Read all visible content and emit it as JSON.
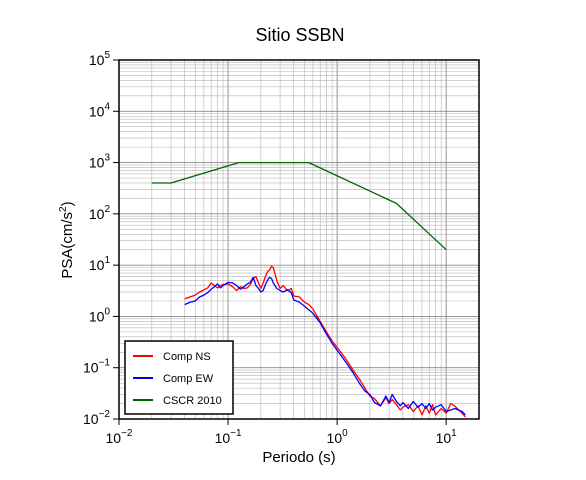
{
  "chart_data": {
    "type": "line",
    "title": "Sitio SSBN",
    "xlabel": "Periodo (s)",
    "ylabel": "PSA(cm/s²)",
    "ylabel_base": "PSA(cm/s",
    "ylabel_sup": "2",
    "ylabel_close": ")",
    "xscale": "log",
    "yscale": "log",
    "xlim": [
      0.01,
      20
    ],
    "ylim": [
      0.01,
      100000
    ],
    "grid": true,
    "legend_position": "bottom-left",
    "x_ticks": [
      {
        "base": "10",
        "exp": "−2",
        "value": 0.01
      },
      {
        "base": "10",
        "exp": "−1",
        "value": 0.1
      },
      {
        "base": "10",
        "exp": "0",
        "value": 1
      },
      {
        "base": "10",
        "exp": "1",
        "value": 10
      }
    ],
    "y_ticks": [
      {
        "base": "10",
        "exp": "−2",
        "value": 0.01
      },
      {
        "base": "10",
        "exp": "−1",
        "value": 0.1
      },
      {
        "base": "10",
        "exp": "0",
        "value": 1
      },
      {
        "base": "10",
        "exp": "1",
        "value": 10
      },
      {
        "base": "10",
        "exp": "2",
        "value": 100
      },
      {
        "base": "10",
        "exp": "3",
        "value": 1000
      },
      {
        "base": "10",
        "exp": "4",
        "value": 10000
      },
      {
        "base": "10",
        "exp": "5",
        "value": 100000
      }
    ],
    "series": [
      {
        "name": "Comp NS",
        "color": "#ff0000",
        "x": [
          0.04,
          0.045,
          0.05,
          0.055,
          0.06,
          0.065,
          0.07,
          0.075,
          0.08,
          0.085,
          0.09,
          0.1,
          0.11,
          0.12,
          0.13,
          0.14,
          0.15,
          0.16,
          0.17,
          0.18,
          0.19,
          0.2,
          0.21,
          0.22,
          0.23,
          0.24,
          0.25,
          0.26,
          0.28,
          0.3,
          0.32,
          0.35,
          0.38,
          0.4,
          0.45,
          0.5,
          0.55,
          0.6,
          0.7,
          0.8,
          0.9,
          1.0,
          1.2,
          1.4,
          1.6,
          1.8,
          2.0,
          2.2,
          2.5,
          2.8,
          3.0,
          3.2,
          3.5,
          3.8,
          4.0,
          4.5,
          5.0,
          5.5,
          6.0,
          6.5,
          7.0,
          7.5,
          8.0,
          9.0,
          10.0,
          11.0,
          12.0,
          13.0,
          14.0,
          15.0
        ],
        "y": [
          2.2,
          2.4,
          2.6,
          3.0,
          3.3,
          3.6,
          4.5,
          4.0,
          3.6,
          4.0,
          4.2,
          4.3,
          3.8,
          3.2,
          3.8,
          3.5,
          3.6,
          4.2,
          5.5,
          6.0,
          4.5,
          3.5,
          4.5,
          6.0,
          7.5,
          8.0,
          9.5,
          9.0,
          5.0,
          3.5,
          4.0,
          3.2,
          3.5,
          2.5,
          2.4,
          1.9,
          1.7,
          1.4,
          0.8,
          0.5,
          0.33,
          0.25,
          0.15,
          0.09,
          0.06,
          0.04,
          0.028,
          0.025,
          0.018,
          0.026,
          0.02,
          0.024,
          0.019,
          0.015,
          0.017,
          0.019,
          0.014,
          0.018,
          0.012,
          0.018,
          0.013,
          0.019,
          0.012,
          0.016,
          0.013,
          0.02,
          0.018,
          0.015,
          0.013,
          0.011
        ]
      },
      {
        "name": "Comp EW",
        "color": "#0000ff",
        "x": [
          0.04,
          0.045,
          0.05,
          0.055,
          0.06,
          0.065,
          0.07,
          0.075,
          0.08,
          0.085,
          0.09,
          0.1,
          0.11,
          0.12,
          0.13,
          0.14,
          0.15,
          0.16,
          0.17,
          0.18,
          0.19,
          0.2,
          0.21,
          0.22,
          0.23,
          0.24,
          0.25,
          0.26,
          0.28,
          0.3,
          0.32,
          0.35,
          0.38,
          0.4,
          0.45,
          0.5,
          0.55,
          0.6,
          0.7,
          0.8,
          0.9,
          1.0,
          1.2,
          1.4,
          1.6,
          1.8,
          2.0,
          2.2,
          2.5,
          2.8,
          3.0,
          3.2,
          3.5,
          3.8,
          4.0,
          4.5,
          5.0,
          5.5,
          6.0,
          6.5,
          7.0,
          7.5,
          8.0,
          9.0,
          10.0,
          11.0,
          12.0,
          13.0,
          14.0,
          15.0
        ],
        "y": [
          1.7,
          1.9,
          2.0,
          2.4,
          2.6,
          2.9,
          3.4,
          3.8,
          4.3,
          3.6,
          4.0,
          4.6,
          4.5,
          4.0,
          3.4,
          3.8,
          4.3,
          4.6,
          5.8,
          4.0,
          3.5,
          3.0,
          3.2,
          4.2,
          5.0,
          5.8,
          5.5,
          4.5,
          3.5,
          3.2,
          3.0,
          3.3,
          2.9,
          2.1,
          1.9,
          1.6,
          1.35,
          1.15,
          0.75,
          0.45,
          0.3,
          0.22,
          0.13,
          0.08,
          0.05,
          0.035,
          0.03,
          0.021,
          0.018,
          0.028,
          0.021,
          0.03,
          0.022,
          0.018,
          0.021,
          0.016,
          0.022,
          0.017,
          0.02,
          0.016,
          0.02,
          0.015,
          0.017,
          0.019,
          0.014,
          0.015,
          0.016,
          0.015,
          0.014,
          0.012
        ]
      },
      {
        "name": "CSCR 2010",
        "color": "#006400",
        "x": [
          0.02,
          0.03,
          0.125,
          0.55,
          3.5,
          10.0
        ],
        "y": [
          400,
          400,
          1000,
          1000,
          160,
          20
        ]
      }
    ]
  }
}
